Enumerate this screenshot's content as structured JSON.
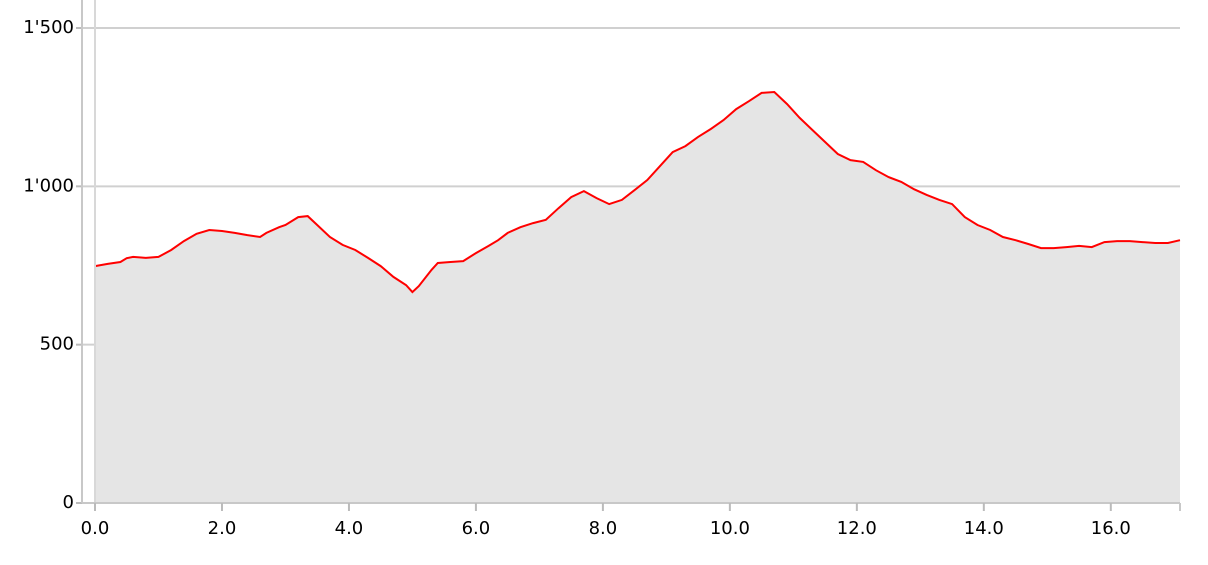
{
  "chart_data": {
    "type": "area",
    "x": [
      0,
      0.2,
      0.4,
      0.5,
      0.6,
      0.8,
      1.0,
      1.2,
      1.4,
      1.6,
      1.8,
      2.0,
      2.2,
      2.4,
      2.6,
      2.7,
      2.9,
      3.0,
      3.2,
      3.35,
      3.5,
      3.7,
      3.9,
      4.1,
      4.3,
      4.5,
      4.7,
      4.9,
      5.0,
      5.1,
      5.3,
      5.4,
      5.6,
      5.8,
      6.0,
      6.2,
      6.35,
      6.5,
      6.7,
      6.9,
      7.1,
      7.3,
      7.5,
      7.7,
      7.9,
      8.1,
      8.3,
      8.5,
      8.7,
      8.9,
      9.1,
      9.3,
      9.5,
      9.7,
      9.9,
      10.1,
      10.3,
      10.5,
      10.7,
      10.9,
      11.1,
      11.3,
      11.5,
      11.7,
      11.9,
      12.1,
      12.3,
      12.5,
      12.7,
      12.9,
      13.1,
      13.3,
      13.5,
      13.7,
      13.9,
      14.1,
      14.3,
      14.5,
      14.7,
      14.9,
      15.1,
      15.3,
      15.5,
      15.7,
      15.9,
      16.1,
      16.3,
      16.5,
      16.7,
      16.9,
      17.09
    ],
    "series": [
      {
        "color": "#ff0000",
        "fill": "#e5e5e5",
        "values": [
          748,
          755,
          761,
          773,
          777,
          774,
          777,
          799,
          827,
          850,
          862,
          859,
          853,
          846,
          840,
          853,
          871,
          878,
          903,
          906,
          878,
          840,
          815,
          799,
          774,
          748,
          714,
          688,
          666,
          685,
          736,
          758,
          761,
          764,
          789,
          812,
          830,
          853,
          871,
          884,
          894,
          931,
          966,
          985,
          963,
          944,
          957,
          988,
          1020,
          1064,
          1108,
          1127,
          1156,
          1181,
          1209,
          1244,
          1269,
          1295,
          1298,
          1260,
          1216,
          1178,
          1140,
          1102,
          1083,
          1077,
          1051,
          1029,
          1014,
          991,
          973,
          957,
          944,
          903,
          878,
          862,
          840,
          830,
          818,
          805,
          805,
          808,
          812,
          808,
          824,
          827,
          827,
          824,
          821,
          821,
          830
        ]
      }
    ],
    "xlim": [
      0,
      17.09
    ],
    "xticks": [
      {
        "value": 0,
        "label": "0.0"
      },
      {
        "value": 2,
        "label": "2.0"
      },
      {
        "value": 4,
        "label": "4.0"
      },
      {
        "value": 6,
        "label": "6.0"
      },
      {
        "value": 8,
        "label": "8.0"
      },
      {
        "value": 10,
        "label": "10.0"
      },
      {
        "value": 12,
        "label": "12.0"
      },
      {
        "value": 14,
        "label": "14.0"
      },
      {
        "value": 16,
        "label": "16.0"
      }
    ],
    "ylim": [
      0,
      1500
    ],
    "yticks": [
      0,
      500,
      {
        "value": 1000,
        "label": "1'000"
      },
      {
        "value": 1500,
        "label": "1'500"
      }
    ],
    "grid": true
  }
}
